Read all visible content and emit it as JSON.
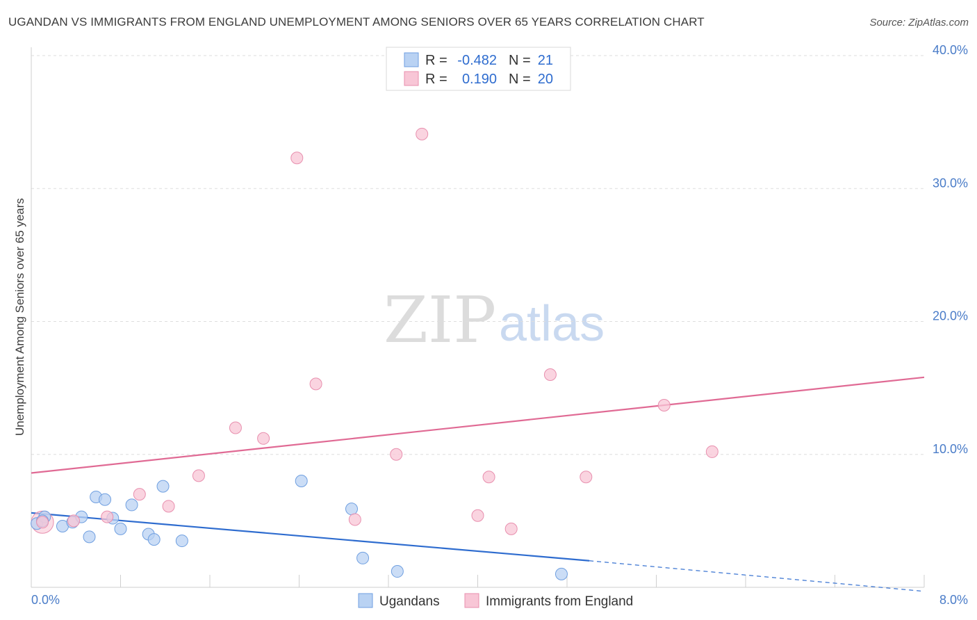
{
  "chart_data": {
    "type": "scatter",
    "title": "UGANDAN VS IMMIGRANTS FROM ENGLAND UNEMPLOYMENT AMONG SENIORS OVER 65 YEARS CORRELATION CHART",
    "source": "Source: ZipAtlas.com",
    "xlabel": "",
    "ylabel": "Unemployment Among Seniors over 65 years",
    "xlim": [
      0,
      8
    ],
    "ylim": [
      0,
      40
    ],
    "x_tick_labels": [
      "0.0%",
      "8.0%"
    ],
    "y_ticks": [
      10,
      20,
      30,
      40
    ],
    "y_tick_labels": [
      "10.0%",
      "20.0%",
      "30.0%",
      "40.0%"
    ],
    "watermark": {
      "zip": "ZIP",
      "atlas": "atlas"
    },
    "legend": {
      "r_label": "R =",
      "n_label": "N =",
      "entries": [
        {
          "r": "-0.482",
          "n": "21"
        },
        {
          "r": "0.190",
          "n": "20"
        }
      ]
    },
    "series": [
      {
        "name": "Ugandans",
        "color": "#6f9fe0",
        "fill": "#b9d2f3",
        "line_color": "#2e6ccf",
        "trend": {
          "x0": 0,
          "y0": 5.6,
          "x1": 5.0,
          "y1": 2.0,
          "dash_to_x": 8.0,
          "dash_to_y": -0.3
        },
        "points": [
          [
            0.05,
            4.8
          ],
          [
            0.12,
            5.3
          ],
          [
            0.28,
            4.6
          ],
          [
            0.37,
            4.9
          ],
          [
            0.45,
            5.3
          ],
          [
            0.52,
            3.8
          ],
          [
            0.58,
            6.8
          ],
          [
            0.66,
            6.6
          ],
          [
            0.73,
            5.2
          ],
          [
            0.8,
            4.4
          ],
          [
            0.9,
            6.2
          ],
          [
            1.05,
            4.0
          ],
          [
            1.1,
            3.6
          ],
          [
            1.18,
            7.6
          ],
          [
            1.35,
            3.5
          ],
          [
            2.42,
            8.0
          ],
          [
            2.87,
            5.9
          ],
          [
            2.97,
            2.2
          ],
          [
            3.28,
            1.2
          ],
          [
            4.75,
            1.0
          ],
          [
            0.1,
            5.0
          ]
        ]
      },
      {
        "name": "Immigrants from England",
        "color": "#e88fae",
        "fill": "#f8c6d6",
        "line_color": "#e06a94",
        "trend": {
          "x0": 0,
          "y0": 8.6,
          "x1": 8.0,
          "y1": 15.8
        },
        "points": [
          [
            0.1,
            4.9
          ],
          [
            0.38,
            5.0
          ],
          [
            0.68,
            5.3
          ],
          [
            0.97,
            7.0
          ],
          [
            1.23,
            6.1
          ],
          [
            1.5,
            8.4
          ],
          [
            1.83,
            12.0
          ],
          [
            2.08,
            11.2
          ],
          [
            2.38,
            32.3
          ],
          [
            2.55,
            15.3
          ],
          [
            2.9,
            5.1
          ],
          [
            3.27,
            10.0
          ],
          [
            3.5,
            34.1
          ],
          [
            4.0,
            5.4
          ],
          [
            4.1,
            8.3
          ],
          [
            4.3,
            4.4
          ],
          [
            4.65,
            16.0
          ],
          [
            4.97,
            8.3
          ],
          [
            5.67,
            13.7
          ],
          [
            6.1,
            10.2
          ]
        ]
      }
    ]
  }
}
